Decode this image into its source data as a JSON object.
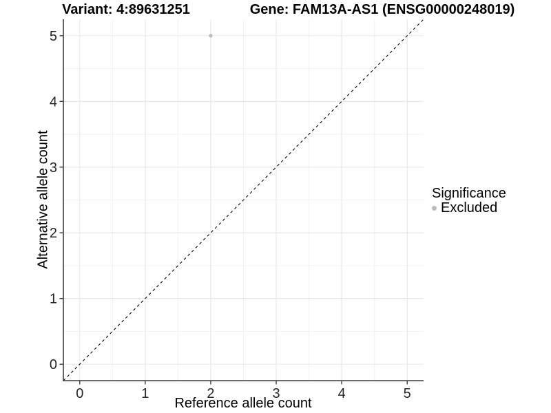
{
  "chart_data": {
    "type": "scatter",
    "title_left": "Variant: 4:89631251",
    "title_right": "Gene: FAM13A-AS1 (ENSG00000248019)",
    "xlabel": "Reference allele count",
    "ylabel": "Alternative allele count",
    "xlim": [
      -0.25,
      5.25
    ],
    "ylim": [
      -0.25,
      5.25
    ],
    "xticks": [
      0,
      1,
      2,
      3,
      4,
      5
    ],
    "yticks": [
      0,
      1,
      2,
      3,
      4,
      5
    ],
    "xminor": [
      0.5,
      1.5,
      2.5,
      3.5,
      4.5
    ],
    "yminor": [
      0.5,
      1.5,
      2.5,
      3.5,
      4.5
    ],
    "grid": "major+minor",
    "points": [
      {
        "x": 2,
        "y": 5,
        "series": "Excluded"
      }
    ],
    "identity_line": {
      "style": "dashed",
      "from": [
        -0.25,
        -0.25
      ],
      "to": [
        5.25,
        5.25
      ],
      "color": "#000000"
    },
    "legend": {
      "title": "Significance",
      "position": "right",
      "items": [
        {
          "label": "Excluded",
          "color": "#bdbdbd"
        }
      ]
    },
    "colors": {
      "background": "#ffffff",
      "grid_major": "#e6e6e6",
      "grid_minor": "#f2f2f2",
      "axis_line": "#3c3c3c",
      "tick_text": "#262626",
      "point": "#bdbdbd"
    }
  }
}
